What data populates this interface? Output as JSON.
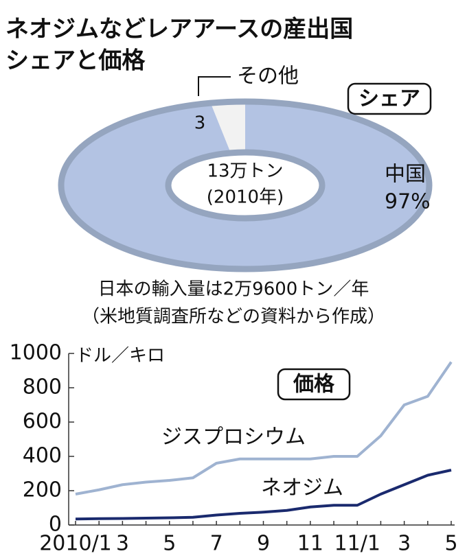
{
  "title": [
    "ネオジムなどレアアースの産出国",
    "シェアと価格"
  ],
  "chart_data": [
    {
      "type": "pie",
      "label": "シェア",
      "categories": [
        "その他",
        "中国"
      ],
      "values": [
        3,
        97
      ],
      "value_labels": [
        "3",
        "97%"
      ],
      "colors": [
        "#f2f2f2",
        "#b3c3e3"
      ],
      "edge_color": "#95a5bf",
      "center_text": [
        "13万トン",
        "(2010年)"
      ],
      "annotations": [
        "日本の輸入量は2万9600トン／年",
        "（米地質調査所などの資料から作成）"
      ]
    },
    {
      "type": "line",
      "label": "価格",
      "y_unit": "ドル／キロ",
      "categories": [
        "2010/1",
        null,
        "3",
        null,
        "5",
        null,
        "7",
        null,
        "9",
        null,
        "11",
        null,
        "11/1",
        null,
        "3",
        null,
        "5"
      ],
      "series": [
        {
          "name": "ジスプロシウム",
          "color": "#9fb3d1",
          "values": [
            180,
            205,
            235,
            250,
            260,
            275,
            360,
            385,
            385,
            385,
            385,
            400,
            400,
            520,
            700,
            750,
            950
          ]
        },
        {
          "name": "ネオジム",
          "color": "#1a2a6e",
          "values": [
            35,
            37,
            38,
            40,
            42,
            45,
            58,
            68,
            75,
            85,
            105,
            115,
            115,
            180,
            235,
            290,
            320
          ]
        }
      ],
      "ylim": [
        0,
        1000
      ],
      "yticks": [
        0,
        200,
        400,
        600,
        800,
        1000
      ]
    }
  ]
}
